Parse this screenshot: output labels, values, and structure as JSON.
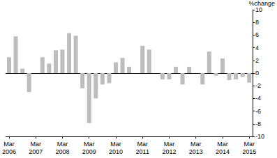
{
  "chart_data": {
    "type": "bar",
    "ylabel": "%change",
    "categories": [
      "Mar 2006",
      null,
      null,
      null,
      "Mar 2007",
      null,
      null,
      null,
      "Mar 2008",
      null,
      null,
      null,
      "Mar 2009",
      null,
      null,
      null,
      "Mar 2010",
      null,
      null,
      null,
      "Mar 2011",
      null,
      null,
      null,
      "Mar 2012",
      null,
      null,
      null,
      "Mar 2013",
      null,
      null,
      null,
      "Mar 2014",
      null,
      null,
      null,
      "Mar 2015"
    ],
    "values": [
      2.5,
      5.8,
      0.7,
      -3.0,
      0,
      2.5,
      1.5,
      3.6,
      3.7,
      6.3,
      5.9,
      -2.4,
      -7.9,
      -4.0,
      -1.8,
      -1.6,
      1.7,
      2.4,
      1.0,
      0,
      4.3,
      3.7,
      0,
      -1.0,
      -1.0,
      1.0,
      -1.8,
      1.0,
      0,
      -1.8,
      3.4,
      -0.4,
      2.3,
      -1.1,
      -1.0,
      -0.6,
      -1.5
    ],
    "color": "#bdbdbd",
    "ylim": [
      -10,
      10
    ],
    "yticks": [
      -10,
      -8,
      -6,
      -4,
      -2,
      0,
      2,
      4,
      6,
      8,
      10
    ],
    "grid": false
  }
}
